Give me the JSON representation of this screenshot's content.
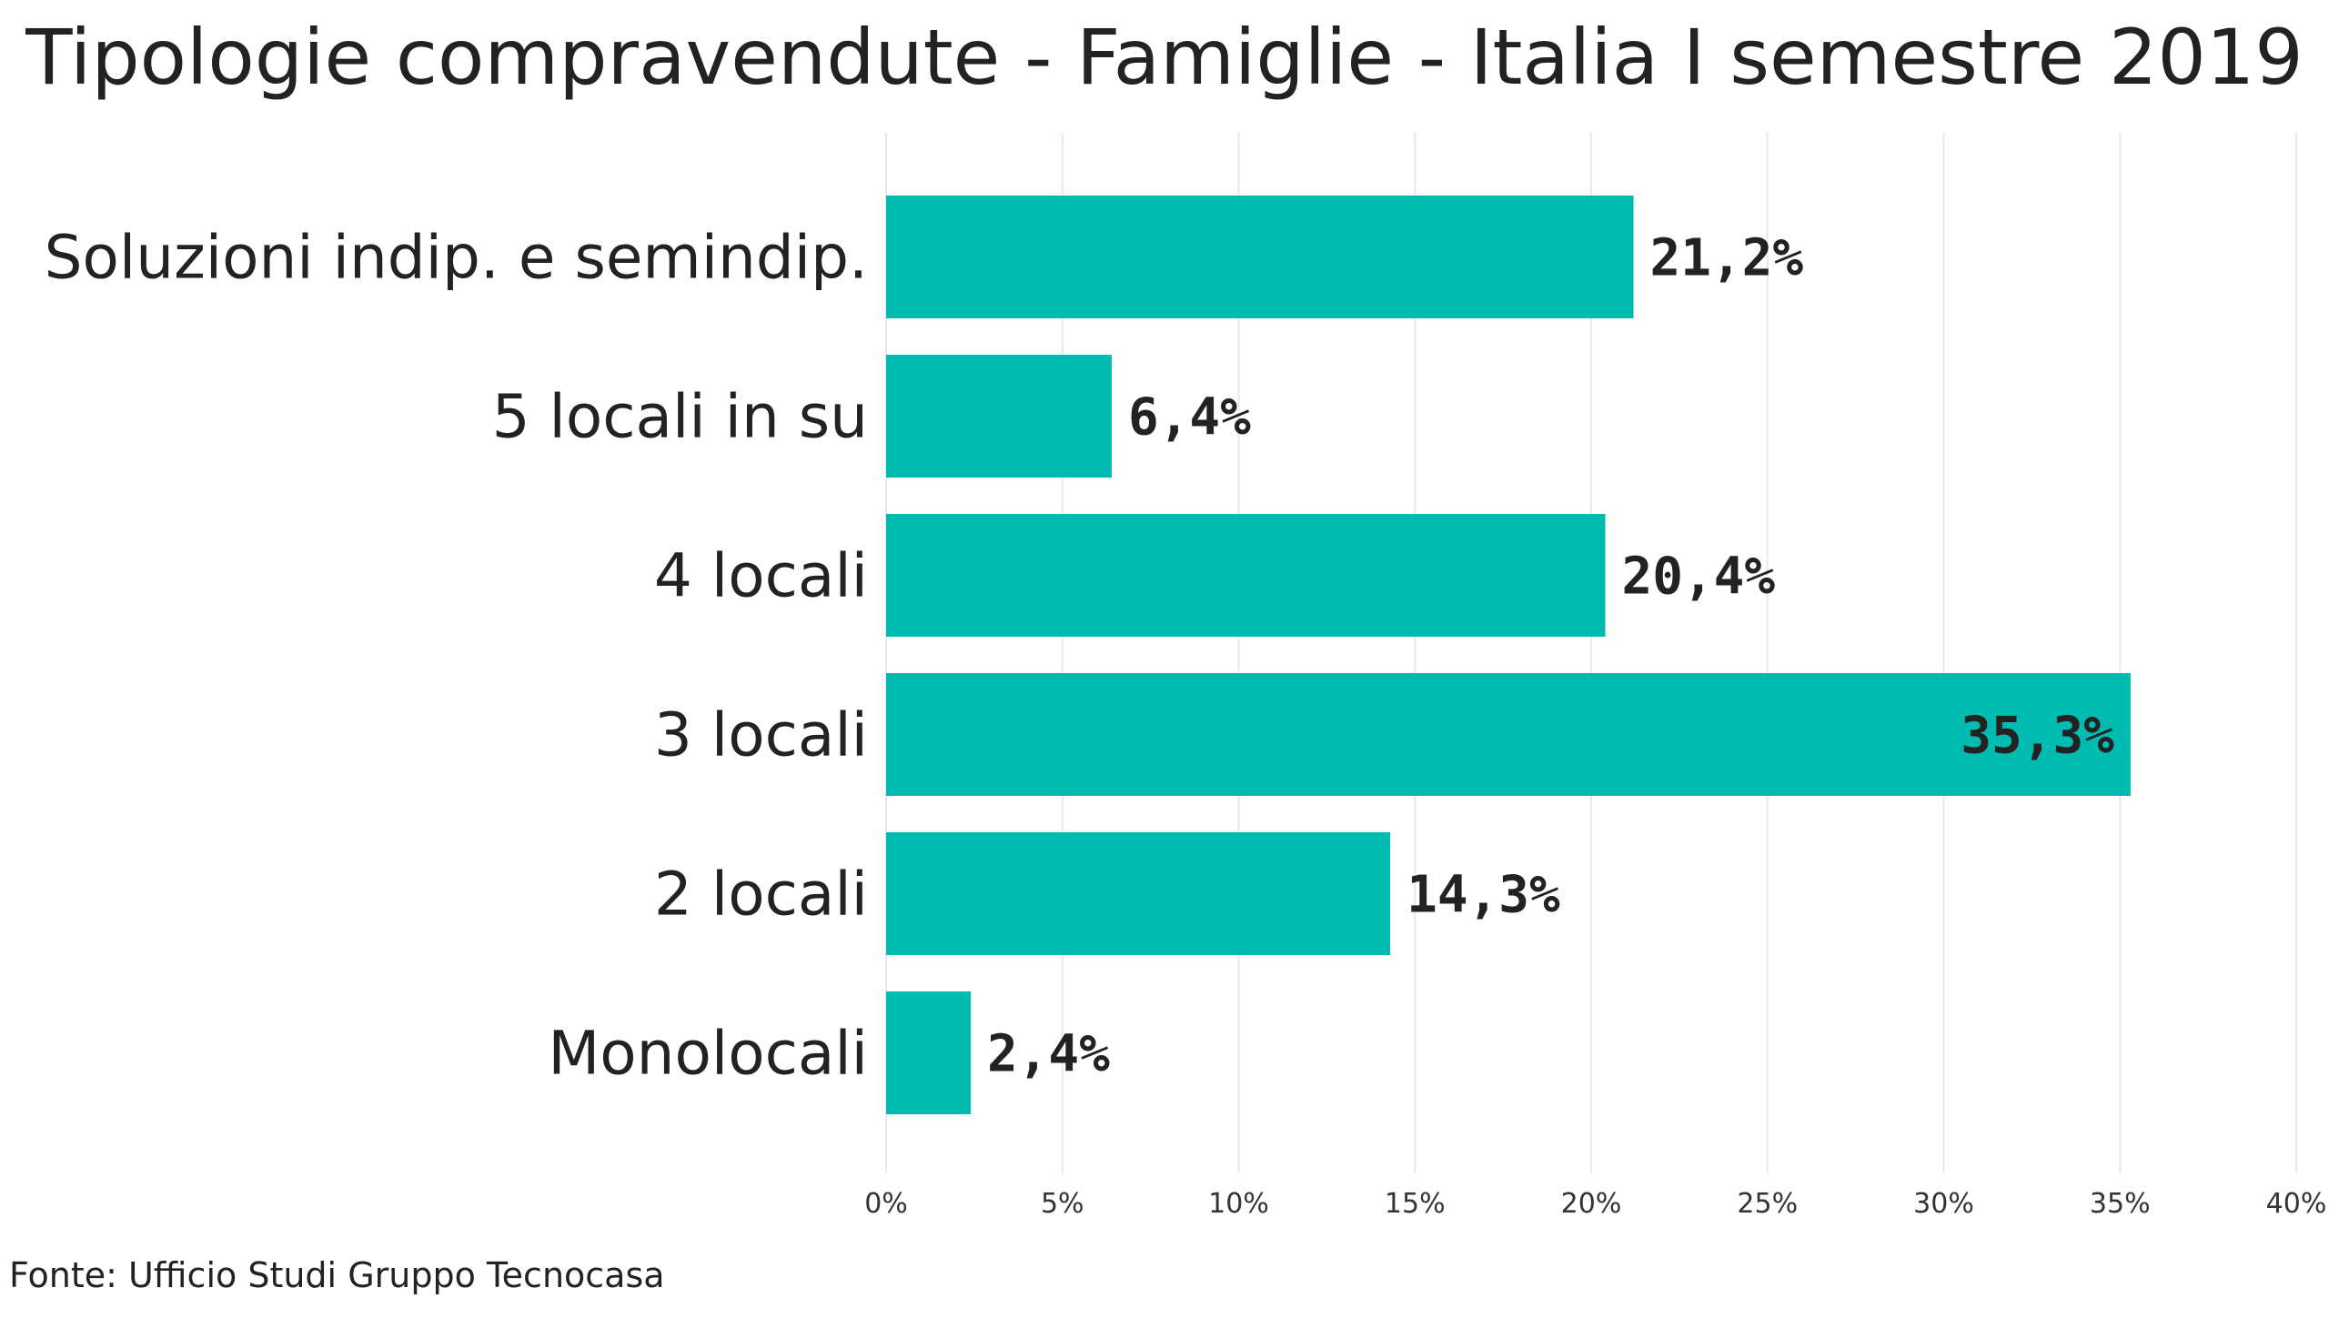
{
  "chart_data": {
    "type": "bar",
    "orientation": "horizontal",
    "title": "Tipologie compravendute - Famiglie - Italia I semestre 2019",
    "categories": [
      "Soluzioni indip. e semindip.",
      "5 locali in su",
      "4 locali",
      "3 locali",
      "2 locali",
      "Monolocali"
    ],
    "values": [
      21.2,
      6.4,
      20.4,
      35.3,
      14.3,
      2.4
    ],
    "value_labels": [
      "21,2%",
      "6,4%",
      "20,4%",
      "35,3%",
      "14,3%",
      "2,4%"
    ],
    "xlim": [
      0,
      40
    ],
    "x_ticks": [
      0,
      5,
      10,
      15,
      20,
      25,
      30,
      35,
      40
    ],
    "x_tick_labels": [
      "0%",
      "5%",
      "10%",
      "15%",
      "20%",
      "25%",
      "30%",
      "35%",
      "40%"
    ],
    "grid": true,
    "legend": "none",
    "bar_color": "#00BBAF"
  },
  "footer": {
    "source": "Fonte: Ufficio Studi Gruppo Tecnocasa"
  }
}
